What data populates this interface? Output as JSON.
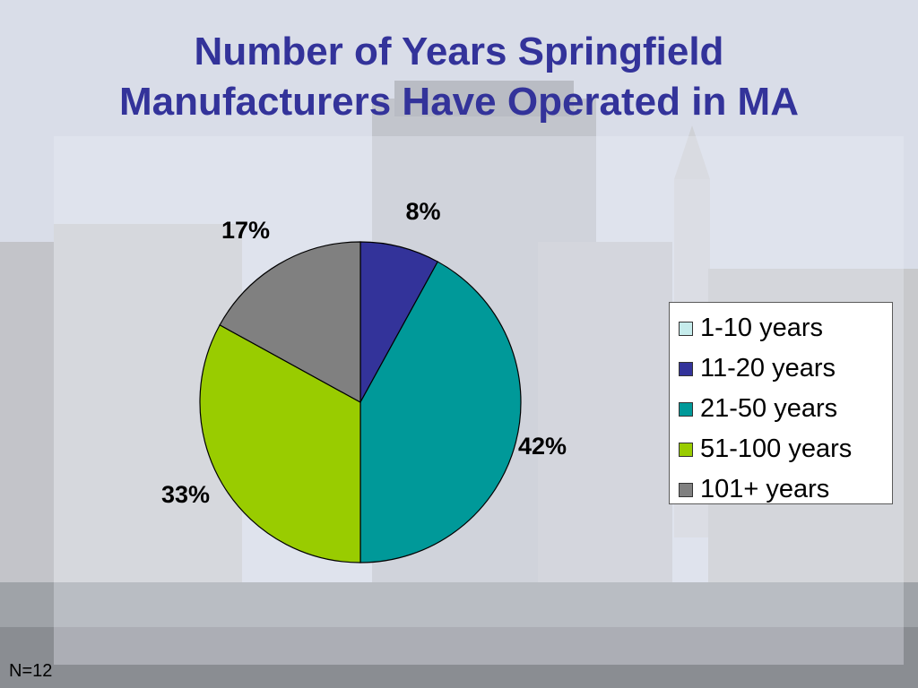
{
  "title_lines": [
    "Number of Years Springfield",
    "Manufacturers Have Operated in MA"
  ],
  "footnote": "N=12",
  "chart_data": {
    "type": "pie",
    "title": "Number of Years Springfield Manufacturers Have Operated in MA",
    "categories": [
      "1-10 years",
      "11-20 years",
      "21-50 years",
      "51-100 years",
      "101+ years"
    ],
    "values": [
      0,
      8,
      42,
      33,
      17
    ],
    "data_labels": [
      "",
      "8%",
      "42%",
      "33%",
      "17%"
    ],
    "colors": [
      "#c6ecec",
      "#33339a",
      "#009999",
      "#99cc00",
      "#808080"
    ],
    "legend_position": "right"
  }
}
